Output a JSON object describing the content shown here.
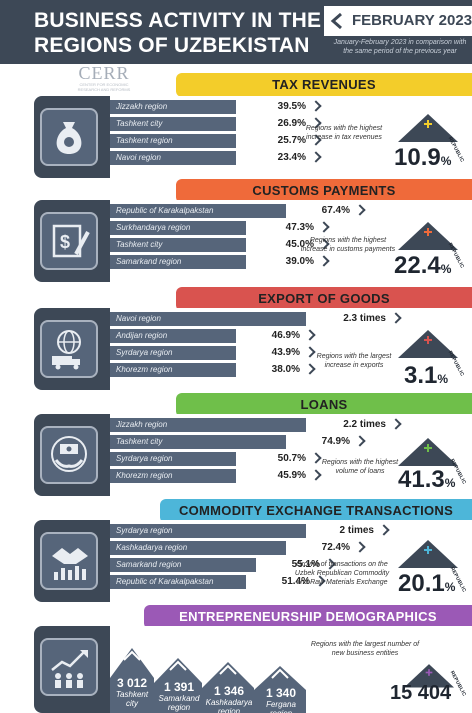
{
  "header": {
    "title": "BUSINESS ACTIVITY IN THE REGIONS OF UZBEKISTAN",
    "month": "FEBRUARY 2023",
    "note": "January-February 2023 in comparison with the same period of the previous year",
    "logo": "CERR",
    "logo_sub": "CENTER FOR ECONOMIC RESEARCH AND REFORMS"
  },
  "sections": [
    {
      "title": "TAX REVENUES",
      "color": "#f3cd2a",
      "rows": [
        {
          "region": "Jizzakh region",
          "value": "39.5%"
        },
        {
          "region": "Tashkent city",
          "value": "26.9%"
        },
        {
          "region": "Tashkent region",
          "value": "25.7%"
        },
        {
          "region": "Navoi region",
          "value": "23.4%"
        }
      ],
      "note": "Regions with the highest increase in tax revenues",
      "republic_value": "10.9",
      "republic_unit": "%",
      "republic_label": "REPUBLIC",
      "icon": "money-bag-icon"
    },
    {
      "title": "CUSTOMS PAYMENTS",
      "color": "#ef6a3a",
      "rows": [
        {
          "region": "Republic of Karakalpakstan",
          "value": "67.4%"
        },
        {
          "region": "Surkhandarya region",
          "value": "47.3%"
        },
        {
          "region": "Tashkent city",
          "value": "45.0%"
        },
        {
          "region": "Samarkand region",
          "value": "39.0%"
        }
      ],
      "note": "Regions with the highest increase in customs payments",
      "republic_value": "22.4",
      "republic_unit": "%",
      "republic_label": "REPUBLIC",
      "icon": "document-pen-icon"
    },
    {
      "title": "EXPORT OF GOODS",
      "color": "#d9534f",
      "rows": [
        {
          "region": "Navoi region",
          "value": "2.3 times"
        },
        {
          "region": "Andijan region",
          "value": "46.9%"
        },
        {
          "region": "Syrdarya region",
          "value": "43.9%"
        },
        {
          "region": "Khorezm region",
          "value": "38.0%"
        }
      ],
      "note": "Regions with the largest increase in exports",
      "republic_value": "3.1",
      "republic_unit": "%",
      "republic_label": "REPUBLIC",
      "icon": "globe-truck-icon"
    },
    {
      "title": "LOANS",
      "color": "#6fbf4a",
      "rows": [
        {
          "region": "Jizzakh region",
          "value": "2.2 times"
        },
        {
          "region": "Tashkent city",
          "value": "74.9%"
        },
        {
          "region": "Syrdarya region",
          "value": "50.7%"
        },
        {
          "region": "Khorezm region",
          "value": "45.9%"
        }
      ],
      "note": "Regions with the highest volume of loans",
      "republic_value": "41.3",
      "republic_unit": "%",
      "republic_label": "REPUBLIC",
      "icon": "hands-money-icon"
    },
    {
      "title": "COMMODITY EXCHANGE TRANSACTIONS",
      "color": "#4db6d9",
      "rows": [
        {
          "region": "Syrdarya region",
          "value": "2 times"
        },
        {
          "region": "Kashkadarya region",
          "value": "72.4%"
        },
        {
          "region": "Samarkand region",
          "value": "55.1%"
        },
        {
          "region": "Republic of Karakalpakstan",
          "value": "51.4%"
        }
      ],
      "note": "Growth of transactions on the Uzbek Republican Commodity and Raw Materials Exchange",
      "republic_value": "20.1",
      "republic_unit": "%",
      "republic_label": "REPUBLIC",
      "icon": "handshake-chart-icon"
    }
  ],
  "demographics": {
    "title": "ENTREPRENEURSHIP DEMOGRAPHICS",
    "color": "#9b59b6",
    "cards": [
      {
        "value": "3 012",
        "label": "Tashkent city"
      },
      {
        "value": "1 391",
        "label": "Samarkand region"
      },
      {
        "value": "1 346",
        "label": "Kashkadarya region"
      },
      {
        "value": "1 340",
        "label": "Fergana region"
      }
    ],
    "note": "Regions with the largest number of new business entities",
    "republic_value": "15 404",
    "republic_label": "REPUBLIC",
    "icon": "people-growth-icon"
  }
}
